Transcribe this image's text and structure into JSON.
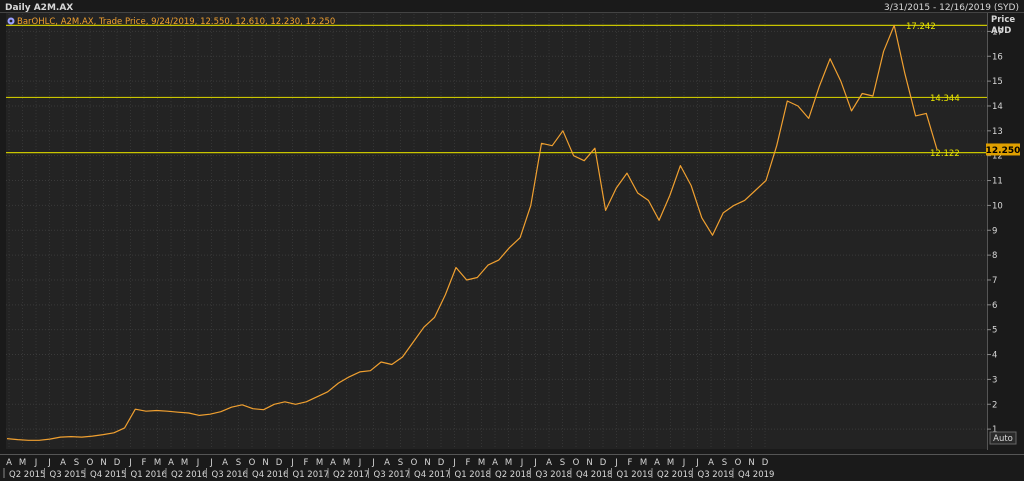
{
  "header": {
    "title": "Daily A2M.AX",
    "date_range": "3/31/2015 - 12/16/2019 (SYD)"
  },
  "legend": {
    "icon": "settings-gear-icon",
    "text": "BarOHLC, A2M.AX, Trade Price, 9/24/2019, 12.550, 12.610, 12.230, 12.250"
  },
  "axis": {
    "y_title_1": "Price",
    "y_title_2": "AUD",
    "auto_label": "Auto",
    "y_ticks": [
      1,
      2,
      3,
      4,
      5,
      6,
      7,
      8,
      9,
      10,
      11,
      12,
      13,
      14,
      15,
      16,
      17
    ],
    "month_labels": [
      "A",
      "M",
      "J",
      "J",
      "A",
      "S",
      "O",
      "N",
      "D",
      "J",
      "F",
      "M",
      "A",
      "M",
      "J",
      "J",
      "A",
      "S",
      "O",
      "N",
      "D",
      "J",
      "F",
      "M",
      "A",
      "M",
      "J",
      "J",
      "A",
      "S",
      "O",
      "N",
      "D",
      "J",
      "F",
      "M",
      "A",
      "M",
      "J",
      "J",
      "A",
      "S",
      "O",
      "N",
      "D",
      "J",
      "F",
      "M",
      "A",
      "M",
      "J",
      "J",
      "A",
      "S",
      "O",
      "N",
      "D"
    ],
    "quarter_labels": [
      "Q2 2015",
      "Q3 2015",
      "Q4 2015",
      "Q1 2016",
      "Q2 2016",
      "Q3 2016",
      "Q4 2016",
      "Q1 2017",
      "Q2 2017",
      "Q3 2017",
      "Q4 2017",
      "Q1 2018",
      "Q2 2018",
      "Q3 2018",
      "Q4 2018",
      "Q1 2019",
      "Q2 2019",
      "Q3 2019",
      "Q4 2019"
    ]
  },
  "chart_data": {
    "type": "line",
    "ylim": [
      0.2,
      17.7
    ],
    "series": [
      {
        "values": [
          0.62,
          0.58,
          0.55,
          0.55,
          0.6,
          0.68,
          0.7,
          0.68,
          0.72,
          0.78,
          0.85,
          1.05,
          1.8,
          1.72,
          1.75,
          1.72,
          1.68,
          1.65,
          1.55,
          1.6,
          1.7,
          1.88,
          1.98,
          1.82,
          1.78,
          2.0,
          2.1,
          2.0,
          2.1,
          2.3,
          2.5,
          2.85,
          3.1,
          3.3,
          3.35,
          3.7,
          3.6,
          3.9,
          4.5,
          5.1,
          5.5,
          6.4,
          7.5,
          7.0,
          7.1,
          7.6,
          7.8,
          8.3,
          8.7,
          10.0,
          12.5,
          12.4,
          13.0,
          12.0,
          11.8,
          12.3,
          9.8,
          10.7,
          11.3,
          10.5,
          10.2,
          9.4,
          10.4,
          11.6,
          10.8,
          9.5,
          8.8,
          9.7,
          10.0,
          10.2,
          10.6,
          11.0,
          12.4,
          14.2,
          14.0,
          13.5,
          14.8,
          15.9,
          15.0,
          13.8,
          14.5,
          14.4,
          16.2,
          17.242,
          15.3,
          13.6,
          13.7,
          12.25
        ]
      }
    ],
    "reference_lines": [
      {
        "value": 17.242,
        "label": "17.242"
      },
      {
        "value": 14.344,
        "label": "14.344"
      },
      {
        "value": 12.122,
        "label": "12.122"
      }
    ],
    "last_price": {
      "value": 12.25,
      "label": "12.250"
    }
  }
}
